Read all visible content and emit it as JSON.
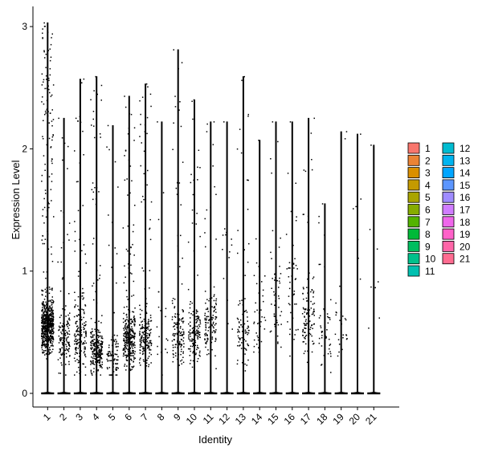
{
  "chart_data": {
    "type": "scatter",
    "subtype": "violin-jitter",
    "xlabel": "Identity",
    "ylabel": "Expression Level",
    "categories": [
      "1",
      "2",
      "3",
      "4",
      "5",
      "6",
      "7",
      "8",
      "9",
      "10",
      "11",
      "12",
      "13",
      "14",
      "15",
      "16",
      "17",
      "18",
      "19",
      "20",
      "21"
    ],
    "y_ticks": [
      "0",
      "1",
      "2",
      "3"
    ],
    "ylim": [
      -0.12,
      3.1
    ],
    "grid": false,
    "legend_position": "right",
    "legend_title": "",
    "series": [
      {
        "name": "1",
        "color": "#F8766D",
        "max": 3.03,
        "n_expr": 700,
        "median": 0.55,
        "spread": 0.18
      },
      {
        "name": "2",
        "color": "#EB8335",
        "max": 2.25,
        "n_expr": 140,
        "median": 0.45,
        "spread": 0.22
      },
      {
        "name": "3",
        "color": "#DA8F00",
        "max": 2.57,
        "n_expr": 190,
        "median": 0.5,
        "spread": 0.25
      },
      {
        "name": "4",
        "color": "#C49A00",
        "max": 2.59,
        "n_expr": 260,
        "median": 0.35,
        "spread": 0.15
      },
      {
        "name": "5",
        "color": "#A9A400",
        "max": 2.19,
        "n_expr": 90,
        "median": 0.3,
        "spread": 0.15
      },
      {
        "name": "6",
        "color": "#86AC00",
        "max": 2.43,
        "n_expr": 330,
        "median": 0.45,
        "spread": 0.2
      },
      {
        "name": "7",
        "color": "#53B400",
        "max": 2.53,
        "n_expr": 200,
        "median": 0.45,
        "spread": 0.18
      },
      {
        "name": "8",
        "color": "#00BA38",
        "max": 2.22,
        "n_expr": 20,
        "median": 0.5,
        "spread": 0.3
      },
      {
        "name": "9",
        "color": "#00BD5F",
        "max": 2.81,
        "n_expr": 140,
        "median": 0.5,
        "spread": 0.2
      },
      {
        "name": "10",
        "color": "#00C08B",
        "max": 2.4,
        "n_expr": 150,
        "median": 0.5,
        "spread": 0.2
      },
      {
        "name": "11",
        "color": "#00C0B0",
        "max": 2.22,
        "n_expr": 120,
        "median": 0.6,
        "spread": 0.25
      },
      {
        "name": "12",
        "color": "#00BCD1",
        "max": 2.22,
        "n_expr": 14,
        "median": 1.3,
        "spread": 0.5
      },
      {
        "name": "13",
        "color": "#00B4EF",
        "max": 2.59,
        "n_expr": 90,
        "median": 0.5,
        "spread": 0.2
      },
      {
        "name": "14",
        "color": "#00A5FF",
        "max": 2.07,
        "n_expr": 40,
        "median": 0.7,
        "spread": 0.35
      },
      {
        "name": "15",
        "color": "#5C96FF",
        "max": 2.22,
        "n_expr": 50,
        "median": 0.8,
        "spread": 0.4
      },
      {
        "name": "16",
        "color": "#9F8CFF",
        "max": 2.22,
        "n_expr": 45,
        "median": 0.8,
        "spread": 0.4
      },
      {
        "name": "17",
        "color": "#D07DFF",
        "max": 2.25,
        "n_expr": 110,
        "median": 0.6,
        "spread": 0.22
      },
      {
        "name": "18",
        "color": "#EF67EB",
        "max": 1.55,
        "n_expr": 45,
        "median": 0.5,
        "spread": 0.25
      },
      {
        "name": "19",
        "color": "#FF61C9",
        "max": 2.14,
        "n_expr": 25,
        "median": 0.5,
        "spread": 0.3
      },
      {
        "name": "20",
        "color": "#FF66A8",
        "max": 2.12,
        "n_expr": 8,
        "median": 1.3,
        "spread": 0.4
      },
      {
        "name": "21",
        "color": "#FF6C91",
        "max": 2.03,
        "n_expr": 8,
        "median": 1.0,
        "spread": 0.4
      }
    ]
  }
}
